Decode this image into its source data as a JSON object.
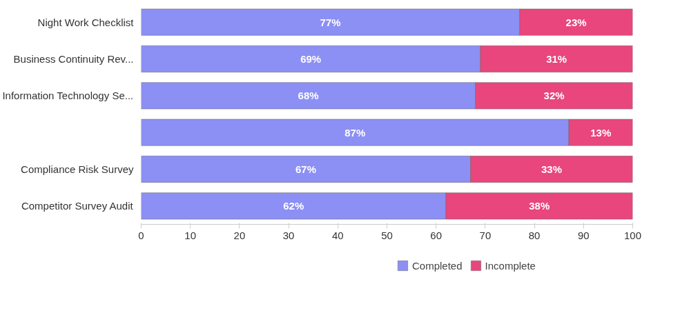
{
  "chart_data": {
    "type": "bar",
    "orientation": "horizontal",
    "stacked": true,
    "categories": [
      "Night Work Checklist",
      "Business Continuity Rev...",
      "Information Technology Se...",
      null,
      "Compliance Risk Survey",
      "Competitor Survey Audit"
    ],
    "series": [
      {
        "name": "Completed",
        "color": "#8c8ff4",
        "values": [
          77,
          69,
          68,
          87,
          67,
          62
        ],
        "value_labels": [
          "77%",
          "69%",
          "68%",
          "87%",
          "67%",
          "62%"
        ]
      },
      {
        "name": "Incomplete",
        "color": "#e8467c",
        "values": [
          23,
          31,
          32,
          13,
          33,
          38
        ],
        "value_labels": [
          "23%",
          "31%",
          "32%",
          "13%",
          "33%",
          "38%"
        ]
      }
    ],
    "xlim": [
      0,
      100
    ],
    "xticks": [
      0,
      10,
      20,
      30,
      40,
      50,
      60,
      70,
      80,
      90,
      100
    ],
    "grid": false,
    "legend": "bottom"
  }
}
